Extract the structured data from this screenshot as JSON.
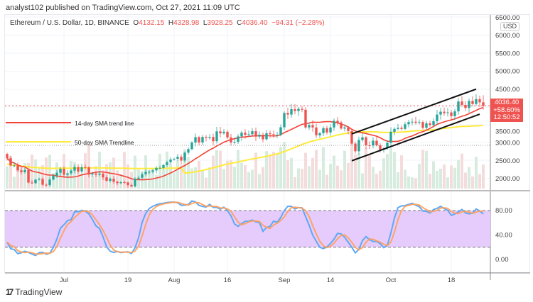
{
  "header": {
    "published": "analyst102 published on TradingView.com, Oct 27, 2021 11:09 UTC"
  },
  "legend": {
    "symbol": "Ethereum / U.S. Dollar, 1D, BINANCE",
    "o_label": "O",
    "open": "4132.15",
    "h_label": "H",
    "high": "4328.98",
    "l_label": "L",
    "low": "3928.25",
    "c_label": "C",
    "close": "4036.40",
    "change": "−94.31 (−2.28%)"
  },
  "price_axis": {
    "currency": "USD",
    "ticks": [
      "6500.00",
      "6000.00",
      "5500.00",
      "5000.00",
      "4500.00",
      "3500.00",
      "3000.00",
      "2500.00",
      "2000.00"
    ]
  },
  "price_badge": {
    "price": "4036.40",
    "change": "+58.60%",
    "countdown": "12:50:52"
  },
  "annotations": {
    "sma14": "14-day SMA trend line",
    "sma50": "50-day SMA Trendline"
  },
  "stoch_axis": {
    "ticks": [
      "80.00",
      "40.00",
      "0.00"
    ]
  },
  "time_axis": {
    "ticks": [
      [
        "Jul",
        "07-01"
      ],
      [
        "19",
        "07-19"
      ],
      [
        "Aug",
        "08-01"
      ],
      [
        "16",
        "08-16"
      ],
      [
        "Sep",
        "09-01"
      ],
      [
        "14",
        "09-14"
      ],
      [
        "Oct",
        "10-01"
      ],
      [
        "18",
        "10-18"
      ]
    ]
  },
  "footer": {
    "brand": "TradingView"
  },
  "colors": {
    "up": "#26a69a",
    "down": "#ef5350",
    "sma14": "#f44336",
    "sma50": "#ffeb3b",
    "k": "#5fa8f5",
    "d": "#ff9e59",
    "band": "#e6ccfc"
  },
  "chart_data": {
    "type": "candlestick",
    "series_closes": [
      [
        "06-15",
        2570
      ],
      [
        "06-16",
        2370
      ],
      [
        "06-17",
        2370
      ],
      [
        "06-18",
        2230
      ],
      [
        "06-19",
        2180
      ],
      [
        "06-20",
        2240
      ],
      [
        "06-21",
        1890
      ],
      [
        "06-22",
        1875
      ],
      [
        "06-23",
        1970
      ],
      [
        "06-24",
        1990
      ],
      [
        "06-25",
        1830
      ],
      [
        "06-26",
        1820
      ],
      [
        "06-27",
        1975
      ],
      [
        "06-28",
        2085
      ],
      [
        "06-29",
        2165
      ],
      [
        "06-30",
        2275
      ],
      [
        "07-01",
        2110
      ],
      [
        "07-02",
        2150
      ],
      [
        "07-03",
        2225
      ],
      [
        "07-04",
        2325
      ],
      [
        "07-05",
        2200
      ],
      [
        "07-06",
        2320
      ],
      [
        "07-07",
        2315
      ],
      [
        "07-08",
        2115
      ],
      [
        "07-09",
        2145
      ],
      [
        "07-10",
        2110
      ],
      [
        "07-11",
        2140
      ],
      [
        "07-12",
        2035
      ],
      [
        "07-13",
        1940
      ],
      [
        "07-14",
        1995
      ],
      [
        "07-15",
        1915
      ],
      [
        "07-16",
        1875
      ],
      [
        "07-17",
        1900
      ],
      [
        "07-18",
        1895
      ],
      [
        "07-19",
        1820
      ],
      [
        "07-20",
        1785
      ],
      [
        "07-21",
        1995
      ],
      [
        "07-22",
        2025
      ],
      [
        "07-23",
        2125
      ],
      [
        "07-24",
        2190
      ],
      [
        "07-25",
        2190
      ],
      [
        "07-26",
        2230
      ],
      [
        "07-27",
        2300
      ],
      [
        "07-28",
        2300
      ],
      [
        "07-29",
        2380
      ],
      [
        "07-30",
        2460
      ],
      [
        "07-31",
        2535
      ],
      [
        "08-01",
        2555
      ],
      [
        "08-02",
        2610
      ],
      [
        "08-03",
        2505
      ],
      [
        "08-04",
        2725
      ],
      [
        "08-05",
        2825
      ],
      [
        "08-06",
        3010
      ],
      [
        "08-07",
        3160
      ],
      [
        "08-08",
        3010
      ],
      [
        "08-09",
        3165
      ],
      [
        "08-10",
        3140
      ],
      [
        "08-11",
        3165
      ],
      [
        "08-12",
        3045
      ],
      [
        "08-13",
        3320
      ],
      [
        "08-14",
        3265
      ],
      [
        "08-15",
        3310
      ],
      [
        "08-16",
        3150
      ],
      [
        "08-17",
        3010
      ],
      [
        "08-18",
        3030
      ],
      [
        "08-19",
        3180
      ],
      [
        "08-20",
        3285
      ],
      [
        "08-21",
        3225
      ],
      [
        "08-22",
        3240
      ],
      [
        "08-23",
        3325
      ],
      [
        "08-24",
        3175
      ],
      [
        "08-25",
        3225
      ],
      [
        "08-26",
        3100
      ],
      [
        "08-27",
        3270
      ],
      [
        "08-28",
        3245
      ],
      [
        "08-29",
        3225
      ],
      [
        "08-30",
        3225
      ],
      [
        "08-31",
        3435
      ],
      [
        "09-01",
        3835
      ],
      [
        "09-02",
        3790
      ],
      [
        "09-03",
        3940
      ],
      [
        "09-04",
        3890
      ],
      [
        "09-05",
        3950
      ],
      [
        "09-06",
        3925
      ],
      [
        "09-07",
        3430
      ],
      [
        "09-08",
        3495
      ],
      [
        "09-09",
        3430
      ],
      [
        "09-10",
        3210
      ],
      [
        "09-11",
        3270
      ],
      [
        "09-12",
        3410
      ],
      [
        "09-13",
        3290
      ],
      [
        "09-14",
        3430
      ],
      [
        "09-15",
        3615
      ],
      [
        "09-16",
        3570
      ],
      [
        "09-17",
        3400
      ],
      [
        "09-18",
        3430
      ],
      [
        "09-19",
        3330
      ],
      [
        "09-20",
        2980
      ],
      [
        "09-21",
        2765
      ],
      [
        "09-22",
        3080
      ],
      [
        "09-23",
        3155
      ],
      [
        "09-24",
        2930
      ],
      [
        "09-25",
        2925
      ],
      [
        "09-26",
        3060
      ],
      [
        "09-27",
        2930
      ],
      [
        "09-28",
        2810
      ],
      [
        "09-29",
        2850
      ],
      [
        "09-30",
        3000
      ],
      [
        "10-01",
        3310
      ],
      [
        "10-02",
        3390
      ],
      [
        "10-03",
        3420
      ],
      [
        "10-04",
        3390
      ],
      [
        "10-05",
        3520
      ],
      [
        "10-06",
        3580
      ],
      [
        "10-07",
        3590
      ],
      [
        "10-08",
        3560
      ],
      [
        "10-09",
        3580
      ],
      [
        "10-10",
        3420
      ],
      [
        "10-11",
        3545
      ],
      [
        "10-12",
        3495
      ],
      [
        "10-13",
        3605
      ],
      [
        "10-14",
        3790
      ],
      [
        "10-15",
        3870
      ],
      [
        "10-16",
        3830
      ],
      [
        "10-17",
        3850
      ],
      [
        "10-18",
        3745
      ],
      [
        "10-19",
        3880
      ],
      [
        "10-20",
        4155
      ],
      [
        "10-21",
        4060
      ],
      [
        "10-22",
        3975
      ],
      [
        "10-23",
        4170
      ],
      [
        "10-24",
        4085
      ],
      [
        "10-25",
        4220
      ],
      [
        "10-26",
        4132.15
      ],
      [
        "10-27",
        4036.4
      ]
    ],
    "price_range": [
      1800,
      6500
    ],
    "indicators": [
      "SMA 14",
      "SMA 50",
      "Stochastic"
    ],
    "stoch_range": [
      0,
      100
    ],
    "stoch_bands": [
      20,
      80
    ],
    "channel": {
      "upper": [
        [
          "09-20",
          3250
        ],
        [
          "10-25",
          4500
        ]
      ],
      "lower": [
        [
          "09-20",
          2500
        ],
        [
          "10-26",
          3800
        ]
      ]
    }
  }
}
